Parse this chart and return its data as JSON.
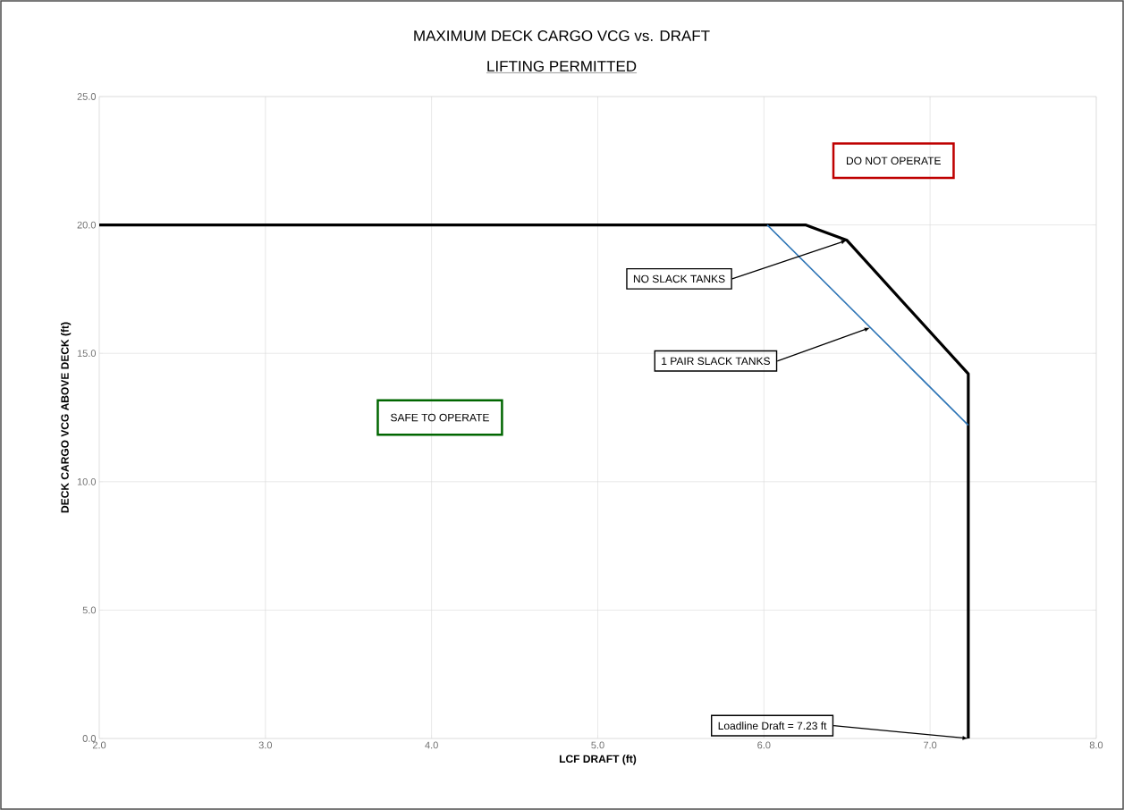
{
  "chart_data": {
    "type": "line",
    "title": "MAXIMUM DECK CARGO VCG vs. DRAFT",
    "subtitle": "LIFTING PERMITTED",
    "xlabel": "LCF DRAFT (ft)",
    "ylabel": "DECK CARGO VCG ABOVE DECK (ft)",
    "series": [
      {
        "color": "#000000",
        "x": [
          2.0,
          6.25,
          6.5,
          7.23,
          7.23
        ],
        "values": [
          20.0,
          20.0,
          19.4,
          14.2,
          0.0
        ]
      },
      {
        "color": "#2e75b6",
        "x": [
          6.02,
          7.23
        ],
        "values": [
          20.0,
          12.2
        ]
      }
    ],
    "xlim": [
      2,
      8
    ],
    "xticks": [
      {
        "value": 2,
        "label": "2.0"
      },
      {
        "value": 3,
        "label": "3.0"
      },
      {
        "value": 4,
        "label": "4.0"
      },
      {
        "value": 5,
        "label": "5.0"
      },
      {
        "value": 6,
        "label": "6.0"
      },
      {
        "value": 7,
        "label": "7.0"
      },
      {
        "value": 8,
        "label": "8.0"
      }
    ],
    "ylim": [
      0,
      25
    ],
    "yticks": [
      {
        "value": 0,
        "label": "0.0"
      },
      {
        "value": 5,
        "label": "5.0"
      },
      {
        "value": 10,
        "label": "10.0"
      },
      {
        "value": 15,
        "label": "15.0"
      },
      {
        "value": 20,
        "label": "20.0"
      },
      {
        "value": 25,
        "label": "25.0"
      }
    ],
    "grid": true,
    "marker": "none",
    "line_style": "solid",
    "annotations": [
      {
        "text": "NO SLACK TANKS",
        "x": 6.5,
        "y": 19.4
      },
      {
        "text": "1 PAIR SLACK TANKS",
        "x": 6.64,
        "y": 16.0
      },
      {
        "text": "Loadline Draft = 7.23 ft",
        "x": 7.23,
        "y": 0.0
      },
      "SAFE TO OPERATE",
      "DO NOT OPERATE"
    ]
  }
}
